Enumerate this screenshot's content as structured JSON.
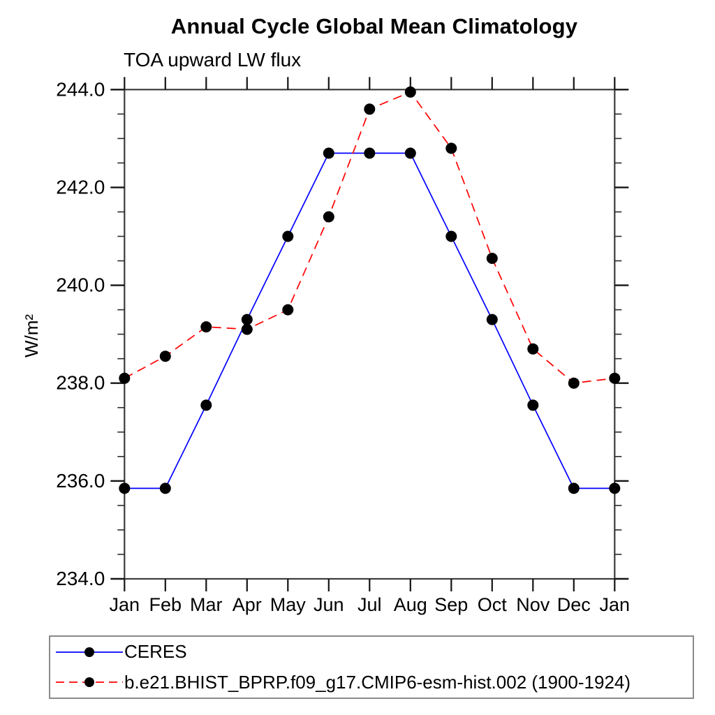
{
  "title": "Annual Cycle Global Mean Climatology",
  "subtitle": "TOA upward LW flux",
  "y_axis_label": "W/m²",
  "chart_data": {
    "type": "line",
    "title": "Annual Cycle Global Mean Climatology",
    "subtitle": "TOA upward LW flux",
    "ylabel": "W/m²",
    "xlabel": "",
    "x_categories": [
      "Jan",
      "Feb",
      "Mar",
      "Apr",
      "May",
      "Jun",
      "Jul",
      "Aug",
      "Sep",
      "Oct",
      "Nov",
      "Dec",
      "Jan"
    ],
    "ylim": [
      234.0,
      244.0
    ],
    "y_ticks": {
      "values": [
        234.0,
        236.0,
        238.0,
        240.0,
        242.0,
        244.0
      ],
      "labels": [
        "234.0",
        "236.0",
        "238.0",
        "240.0",
        "242.0",
        "244.0"
      ]
    },
    "y_minor_step": 0.5,
    "grid": false,
    "legend_position": "bottom",
    "series": [
      {
        "name": "CERES",
        "color": "#0000ff",
        "style": "solid",
        "marker": "circle",
        "marker_color": "#000000",
        "values": [
          235.85,
          235.85,
          237.55,
          239.3,
          241.0,
          242.7,
          242.7,
          242.7,
          241.0,
          239.3,
          237.55,
          235.85,
          235.85
        ]
      },
      {
        "name": "b.e21.BHIST_BPRP.f09_g17.CMIP6-esm-hist.002 (1900-1924)",
        "color": "#ff0000",
        "style": "dashed",
        "marker": "circle",
        "marker_color": "#000000",
        "values": [
          238.1,
          238.55,
          239.15,
          239.1,
          239.5,
          241.4,
          243.6,
          243.95,
          242.8,
          240.55,
          238.7,
          238.0,
          238.1
        ]
      }
    ]
  }
}
